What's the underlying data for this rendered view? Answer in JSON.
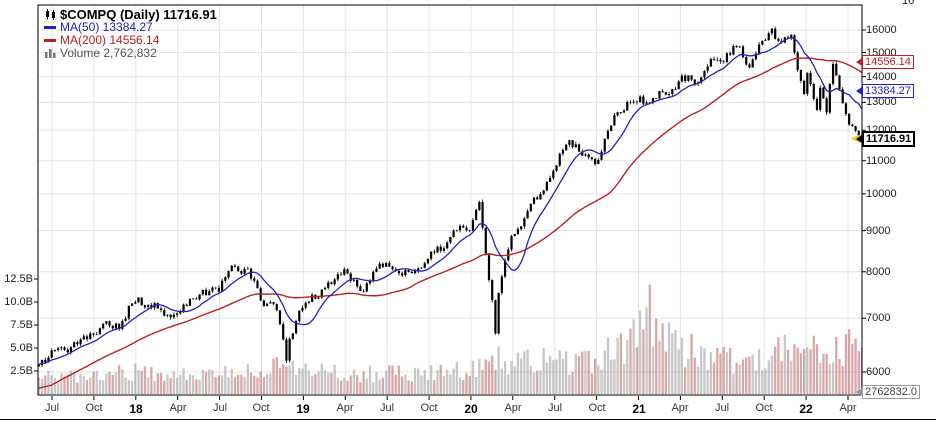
{
  "chart_data": {
    "type": "candlestick",
    "symbol": "$COMPQ",
    "period": "Daily",
    "scale": "log",
    "last_price": 11716.91,
    "ma50_value": 13384.27,
    "ma200_value": 14556.14,
    "legend": {
      "title": "$COMPQ (Daily) 11716.91",
      "ma50": "MA(50) 13384.27",
      "ma200": "MA(200) 14556.14",
      "volume": "Volume 2,762,832"
    },
    "price_gridlines": [
      6000,
      7000,
      8000,
      9000,
      10000,
      11000,
      12000,
      13000,
      14000,
      15000,
      16000
    ],
    "volume_gridlines": [
      {
        "label": "2.5B",
        "v": 2.5
      },
      {
        "label": "5.0B",
        "v": 5
      },
      {
        "label": "7.5B",
        "v": 7.5
      },
      {
        "label": "10.0B",
        "v": 10
      },
      {
        "label": "12.5B",
        "v": 12.5
      }
    ],
    "x_unit": "months after Jun-2017; 0 = Jun-2017, 59 = May-2022",
    "x_ticks": [
      {
        "label": "Jul",
        "m": 1,
        "bold": false
      },
      {
        "label": "Oct",
        "m": 4,
        "bold": false
      },
      {
        "label": "18",
        "m": 7,
        "bold": true
      },
      {
        "label": "Apr",
        "m": 10,
        "bold": false
      },
      {
        "label": "Jul",
        "m": 13,
        "bold": false
      },
      {
        "label": "Oct",
        "m": 16,
        "bold": false
      },
      {
        "label": "19",
        "m": 19,
        "bold": true
      },
      {
        "label": "Apr",
        "m": 22,
        "bold": false
      },
      {
        "label": "Jul",
        "m": 25,
        "bold": false
      },
      {
        "label": "Oct",
        "m": 28,
        "bold": false
      },
      {
        "label": "20",
        "m": 31,
        "bold": true
      },
      {
        "label": "Apr",
        "m": 34,
        "bold": false
      },
      {
        "label": "Jul",
        "m": 37,
        "bold": false
      },
      {
        "label": "Oct",
        "m": 40,
        "bold": false
      },
      {
        "label": "21",
        "m": 43,
        "bold": true
      },
      {
        "label": "Apr",
        "m": 46,
        "bold": false
      },
      {
        "label": "Jul",
        "m": 49,
        "bold": false
      },
      {
        "label": "Oct",
        "m": 52,
        "bold": false
      },
      {
        "label": "22",
        "m": 55,
        "bold": true
      },
      {
        "label": "Apr",
        "m": 58,
        "bold": false
      }
    ],
    "price_anchors": [
      [
        -8,
        5190
      ],
      [
        -6,
        5383
      ],
      [
        -3,
        5912
      ],
      [
        -1,
        6199
      ],
      [
        0,
        6140
      ],
      [
        1,
        6348
      ],
      [
        2,
        6429
      ],
      [
        3,
        6496
      ],
      [
        4,
        6728
      ],
      [
        5,
        6874
      ],
      [
        6,
        6903
      ],
      [
        7,
        7411
      ],
      [
        8,
        7273
      ],
      [
        9,
        7063
      ],
      [
        10,
        7066
      ],
      [
        11,
        7442
      ],
      [
        12,
        7510
      ],
      [
        13,
        7672
      ],
      [
        14,
        8110
      ],
      [
        15,
        8046
      ],
      [
        15.8,
        7450
      ],
      [
        16,
        7306
      ],
      [
        17,
        7331
      ],
      [
        17.8,
        6200
      ],
      [
        18,
        6635
      ],
      [
        19,
        7282
      ],
      [
        20,
        7533
      ],
      [
        21,
        7729
      ],
      [
        22,
        8095
      ],
      [
        23,
        7453
      ],
      [
        24,
        8006
      ],
      [
        25,
        8175
      ],
      [
        26,
        7963
      ],
      [
        27,
        7999
      ],
      [
        28,
        8292
      ],
      [
        29,
        8665
      ],
      [
        30,
        8973
      ],
      [
        31,
        9151
      ],
      [
        31.6,
        9817
      ],
      [
        32,
        8567
      ],
      [
        32.8,
        6700
      ],
      [
        33,
        7700
      ],
      [
        34,
        8890
      ],
      [
        35,
        9490
      ],
      [
        36,
        10059
      ],
      [
        37,
        10745
      ],
      [
        38,
        11775
      ],
      [
        39,
        11168
      ],
      [
        40,
        10912
      ],
      [
        41,
        12199
      ],
      [
        42,
        12888
      ],
      [
        43,
        13071
      ],
      [
        44,
        13192
      ],
      [
        45,
        13247
      ],
      [
        46,
        13963
      ],
      [
        47,
        13749
      ],
      [
        48,
        14504
      ],
      [
        49,
        14673
      ],
      [
        50,
        15259
      ],
      [
        51,
        14449
      ],
      [
        52,
        15498
      ],
      [
        52.6,
        16057
      ],
      [
        53,
        15538
      ],
      [
        54,
        15645
      ],
      [
        54.85,
        13200
      ],
      [
        55,
        14240
      ],
      [
        55.8,
        12700
      ],
      [
        56,
        13751
      ],
      [
        56.45,
        12600
      ],
      [
        56.95,
        14600
      ],
      [
        57,
        14221
      ],
      [
        58,
        12335
      ],
      [
        59,
        11716.91
      ]
    ],
    "volume_anchors_b": [
      [
        -8,
        1.7
      ],
      [
        0,
        1.8
      ],
      [
        4,
        2.0
      ],
      [
        7,
        2.3
      ],
      [
        10,
        2.2
      ],
      [
        14,
        2.1
      ],
      [
        16,
        2.8
      ],
      [
        18,
        2.8
      ],
      [
        20,
        2.4
      ],
      [
        24,
        2.2
      ],
      [
        28,
        2.2
      ],
      [
        31,
        2.5
      ],
      [
        32,
        3.3
      ],
      [
        33,
        4.2
      ],
      [
        34,
        3.7
      ],
      [
        36,
        4.0
      ],
      [
        38,
        3.5
      ],
      [
        40,
        3.7
      ],
      [
        41,
        4.4
      ],
      [
        42,
        4.8
      ],
      [
        43,
        6.8
      ],
      [
        44,
        8.6
      ],
      [
        45,
        6.0
      ],
      [
        46,
        4.8
      ],
      [
        47,
        4.5
      ],
      [
        48,
        4.3
      ],
      [
        49,
        3.9
      ],
      [
        50,
        3.9
      ],
      [
        51,
        4.1
      ],
      [
        52,
        4.3
      ],
      [
        53,
        4.6
      ],
      [
        54,
        4.3
      ],
      [
        55,
        5.0
      ],
      [
        56,
        4.9
      ],
      [
        57,
        5.0
      ],
      [
        58,
        4.9
      ],
      [
        59,
        4.6
      ]
    ],
    "price_callouts": [
      {
        "text": "14556.14",
        "value": 14556.14,
        "color_key": "ma200",
        "bold": false
      },
      {
        "text": "13384.27",
        "value": 13384.27,
        "color_key": "ma50",
        "bold": false
      },
      {
        "text": "11716.91",
        "value": 11716.91,
        "color_key": "last",
        "bold": true
      }
    ],
    "volume_readout": "2762832.0",
    "cropped_fragment": "16"
  },
  "colors": {
    "candle": "#000000",
    "ma50": "#2323bb",
    "ma200": "#bb2222",
    "last": "#000000",
    "grid": "#e4e4e4",
    "frame": "#000000",
    "vol_up": "rgba(130,130,130,0.45)",
    "vol_down": "rgba(178,80,80,0.5)",
    "axis_text": "#222222",
    "legend_volume": "#555555",
    "readout_border": "#999999",
    "readout_text": "#444444",
    "marker": "#ffcc00",
    "marker_edge": "#c9a000"
  }
}
